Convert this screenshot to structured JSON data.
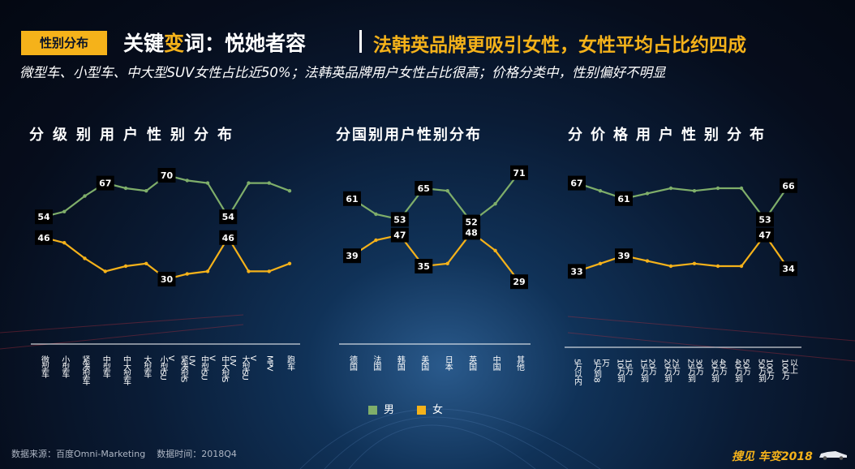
{
  "header": {
    "badge": "性别分布",
    "title_pre": "关键",
    "title_accent": "变",
    "title_post": "词：悦她者容",
    "title_sub": "法韩英品牌更吸引女性，女性平均占比约四成"
  },
  "subtitle": "微型车、小型车、中大型SUV女性占比近50%；法韩英品牌用户女性占比很高；价格分类中，性别偏好不明显",
  "colors": {
    "male": "#7fae6a",
    "female": "#f5b21a",
    "accent": "#f5b21a"
  },
  "legend": {
    "male": "男",
    "female": "女"
  },
  "chart_data": [
    {
      "type": "line",
      "title": "分级别用户性别分布",
      "categories": [
        "微型车",
        "小型车",
        "紧凑型车",
        "中型车",
        "中大型车",
        "大型车",
        "小型SUV",
        "紧凑型SUV",
        "中型SUV",
        "中大型SUV",
        "大型SUV",
        "MPV",
        "跑车"
      ],
      "series": [
        {
          "name": "男",
          "values": [
            54,
            56,
            62,
            67,
            65,
            64,
            70,
            68,
            67,
            54,
            67,
            67,
            64
          ]
        },
        {
          "name": "女",
          "values": [
            46,
            44,
            38,
            33,
            35,
            36,
            30,
            32,
            33,
            46,
            33,
            33,
            36
          ]
        }
      ],
      "labels": [
        {
          "series": 0,
          "index": 0,
          "text": "54"
        },
        {
          "series": 0,
          "index": 3,
          "text": "67"
        },
        {
          "series": 0,
          "index": 6,
          "text": "70"
        },
        {
          "series": 0,
          "index": 9,
          "text": "54"
        },
        {
          "series": 1,
          "index": 0,
          "text": "46"
        },
        {
          "series": 1,
          "index": 6,
          "text": "30"
        },
        {
          "series": 1,
          "index": 9,
          "text": "46"
        }
      ],
      "ylim": [
        25,
        75
      ]
    },
    {
      "type": "line",
      "title": "分国别用户性别分布",
      "categories": [
        "德国",
        "法国",
        "韩国",
        "美国",
        "日本",
        "英国",
        "中国",
        "其他"
      ],
      "series": [
        {
          "name": "男",
          "values": [
            61,
            55,
            53,
            65,
            64,
            52,
            59,
            71
          ]
        },
        {
          "name": "女",
          "values": [
            39,
            45,
            47,
            35,
            36,
            48,
            41,
            29
          ]
        }
      ],
      "labels": [
        {
          "series": 0,
          "index": 0,
          "text": "61"
        },
        {
          "series": 0,
          "index": 2,
          "text": "53"
        },
        {
          "series": 0,
          "index": 3,
          "text": "65"
        },
        {
          "series": 0,
          "index": 5,
          "text": "52"
        },
        {
          "series": 0,
          "index": 7,
          "text": "71"
        },
        {
          "series": 1,
          "index": 0,
          "text": "39"
        },
        {
          "series": 1,
          "index": 2,
          "text": "47"
        },
        {
          "series": 1,
          "index": 3,
          "text": "35"
        },
        {
          "series": 1,
          "index": 5,
          "text": "48"
        },
        {
          "series": 1,
          "index": 7,
          "text": "29"
        }
      ],
      "ylim": [
        25,
        75
      ]
    },
    {
      "type": "line",
      "title": "分价格用户性别分布",
      "categories": [
        "5万以内",
        "5万到8万",
        "10万到15万",
        "15万到20万",
        "20万到25万",
        "25万到30万",
        "30万到40万",
        "40万到50万",
        "50万到100万",
        "100万以上"
      ],
      "series": [
        {
          "name": "男",
          "values": [
            67,
            64,
            61,
            63,
            65,
            64,
            65,
            65,
            53,
            66
          ]
        },
        {
          "name": "女",
          "values": [
            33,
            36,
            39,
            37,
            35,
            36,
            35,
            35,
            47,
            34
          ]
        }
      ],
      "labels": [
        {
          "series": 0,
          "index": 0,
          "text": "67"
        },
        {
          "series": 0,
          "index": 2,
          "text": "61"
        },
        {
          "series": 0,
          "index": 8,
          "text": "53"
        },
        {
          "series": 0,
          "index": 9,
          "text": "66"
        },
        {
          "series": 1,
          "index": 0,
          "text": "33"
        },
        {
          "series": 1,
          "index": 2,
          "text": "39"
        },
        {
          "series": 1,
          "index": 8,
          "text": "47"
        },
        {
          "series": 1,
          "index": 9,
          "text": "34"
        }
      ],
      "ylim": [
        25,
        75
      ]
    }
  ],
  "footer": {
    "source": "数据来源：百度Omni-Marketing",
    "time": "数据时间：2018Q4",
    "brand_pre": "搜见 车变",
    "brand_year": "2018"
  }
}
